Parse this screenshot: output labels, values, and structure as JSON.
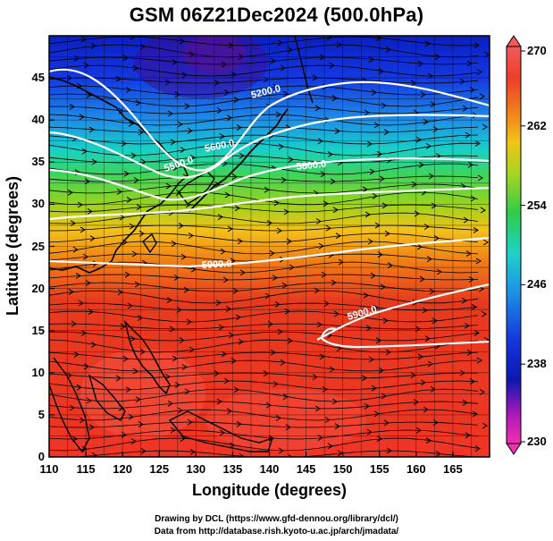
{
  "title": "GSM 06Z21Dec2024 (500.0hPa)",
  "xaxis": {
    "label": "Longitude (degrees)",
    "ticks": [
      "110",
      "115",
      "120",
      "125",
      "130",
      "135",
      "140",
      "145",
      "150",
      "155",
      "160",
      "165"
    ]
  },
  "yaxis": {
    "label": "Latitude  (degrees)",
    "ticks": [
      "0",
      "5",
      "10",
      "15",
      "20",
      "25",
      "30",
      "35",
      "40",
      "45"
    ]
  },
  "colorbar": {
    "ticks": [
      "270",
      "262",
      "254",
      "246",
      "238",
      "230"
    ],
    "range": [
      230,
      270
    ]
  },
  "contours": [
    {
      "label": "5200.0"
    },
    {
      "label": "5500.0"
    },
    {
      "label": "5600.0"
    },
    {
      "label": "5800.0"
    },
    {
      "label": "5900.0"
    },
    {
      "label": "5900.0"
    }
  ],
  "footer": {
    "line1": "Drawing by DCL (https://www.gfd-dennou.org/library/dcl/)",
    "line2": "Data from http://database.rish.kyoto-u.ac.jp/arch/jmadata/"
  },
  "colors": {
    "warm": "#e8302a",
    "cold": "#1a1ad0",
    "contour": "#ffffff",
    "streamline": "#000000"
  }
}
